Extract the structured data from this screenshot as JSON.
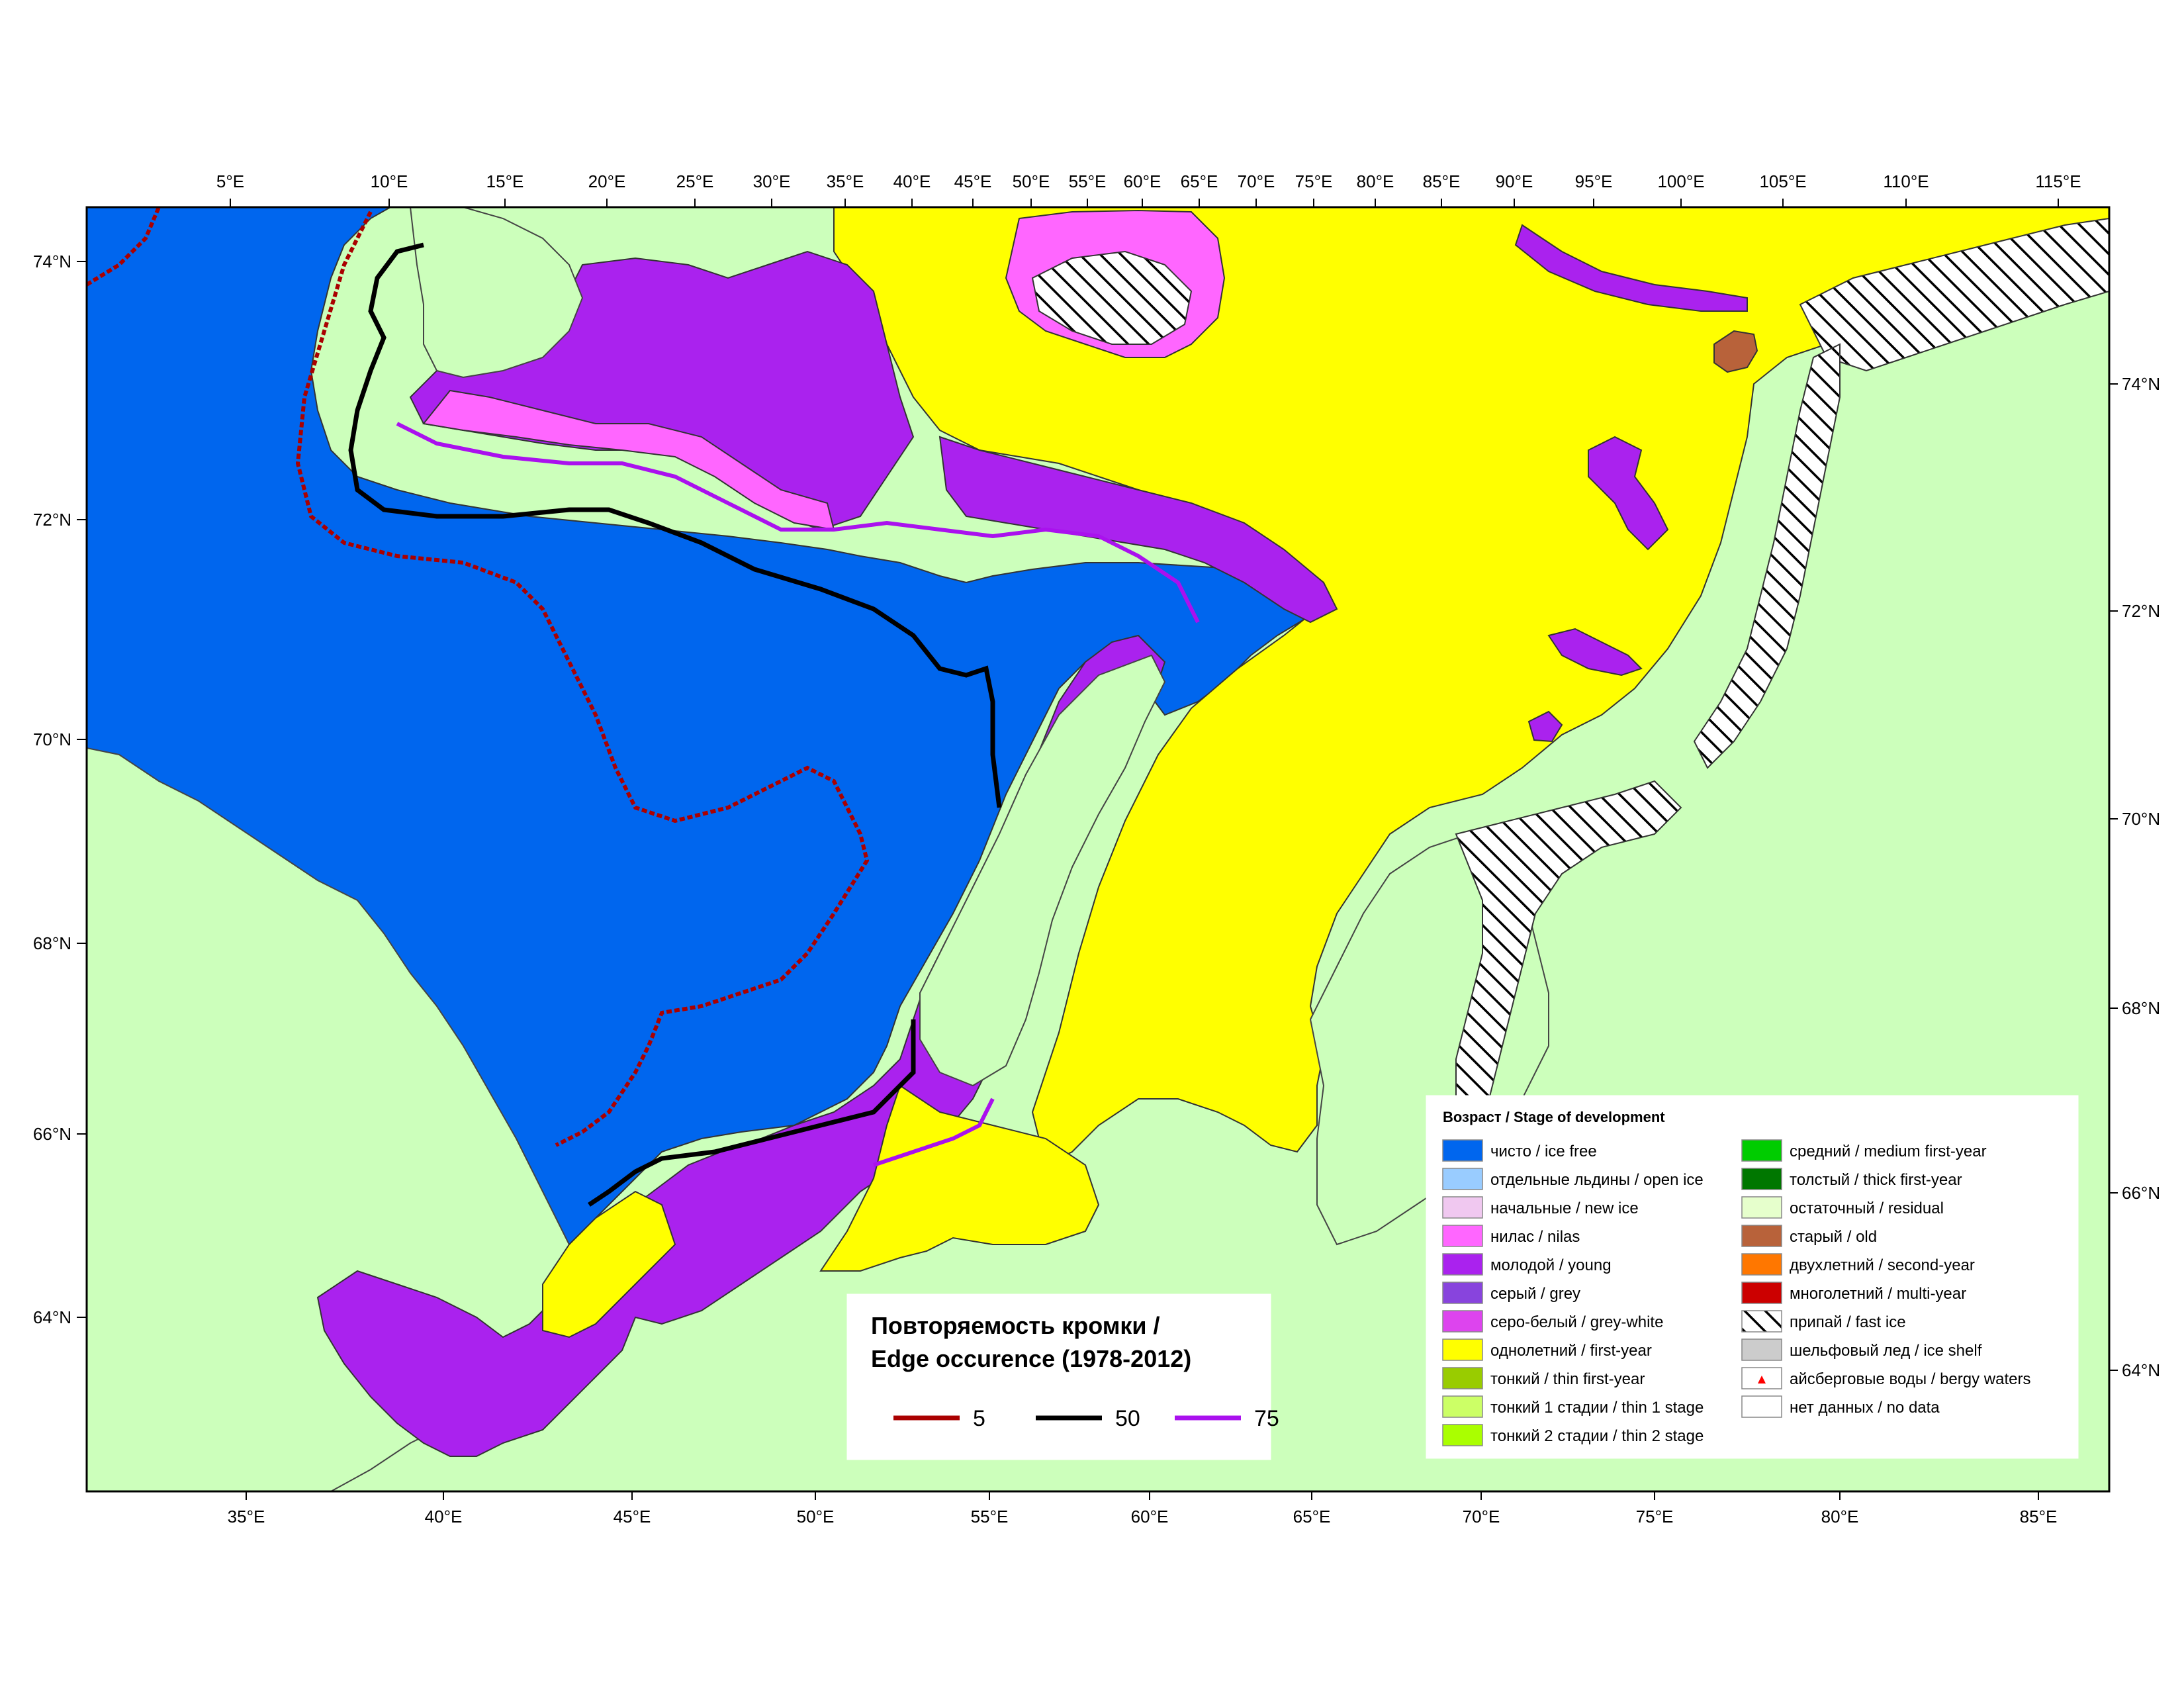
{
  "map": {
    "top_lon_labels": [
      "5°E",
      "10°E",
      "15°E",
      "20°E",
      "25°E",
      "30°E",
      "35°E",
      "40°E",
      "45°E",
      "50°E",
      "55°E",
      "60°E",
      "65°E",
      "70°E",
      "75°E",
      "80°E",
      "85°E",
      "90°E",
      "95°E",
      "100°E",
      "105°E",
      "110°E",
      "115°E"
    ],
    "bottom_lon_labels": [
      "35°E",
      "40°E",
      "45°E",
      "50°E",
      "55°E",
      "60°E",
      "65°E",
      "70°E",
      "75°E",
      "80°E",
      "85°E"
    ],
    "left_lat_labels": [
      "74°N",
      "72°N",
      "70°N",
      "68°N",
      "66°N",
      "64°N"
    ],
    "right_lat_labels": [
      "74°N",
      "72°N",
      "70°N",
      "68°N",
      "66°N",
      "64°N"
    ]
  },
  "legend": {
    "title": "Возраст / Stage of development",
    "items": [
      {
        "label": "чисто / ice free",
        "color": "#0066ee",
        "pattern": "solid"
      },
      {
        "label": "отдельные льдины / open ice",
        "color": "#99ccff",
        "pattern": "solid"
      },
      {
        "label": "начальные / new ice",
        "color": "#f0c8f0",
        "pattern": "solid"
      },
      {
        "label": "нилас / nilas",
        "color": "#ff66ff",
        "pattern": "solid"
      },
      {
        "label": "молодой / young",
        "color": "#aa22ee",
        "pattern": "solid"
      },
      {
        "label": "серый / grey",
        "color": "#8844dd",
        "pattern": "solid"
      },
      {
        "label": "серо-белый / grey-white",
        "color": "#dd44ee",
        "pattern": "solid"
      },
      {
        "label": "однолетний / first-year",
        "color": "#ffff00",
        "pattern": "solid"
      },
      {
        "label": "тонкий / thin first-year",
        "color": "#99cc00",
        "pattern": "solid"
      },
      {
        "label": "тонкий 1 стадии / thin 1 stage",
        "color": "#ccff66",
        "pattern": "solid"
      },
      {
        "label": "тонкий 2 стадии / thin 2 stage",
        "color": "#aaff00",
        "pattern": "solid"
      },
      {
        "label": "средний / medium first-year",
        "color": "#00cc00",
        "pattern": "solid"
      },
      {
        "label": "толстый / thick first-year",
        "color": "#007700",
        "pattern": "solid"
      },
      {
        "label": "остаточный / residual",
        "color": "#e6ffcc",
        "pattern": "solid"
      },
      {
        "label": "старый / old",
        "color": "#b8623a",
        "pattern": "solid"
      },
      {
        "label": "двухлетний / second-year",
        "color": "#ff7700",
        "pattern": "solid"
      },
      {
        "label": "многолетний / multi-year",
        "color": "#cc0000",
        "pattern": "solid"
      },
      {
        "label": "припай / fast ice",
        "color": "#000000",
        "pattern": "hatch"
      },
      {
        "label": "шельфовый лед / ice shelf",
        "color": "#cccccc",
        "pattern": "solid"
      },
      {
        "label": "айсберговые воды / bergy waters",
        "color": "#ff0000",
        "pattern": "berg"
      },
      {
        "label": "нет данных / no data",
        "color": "#ffffff",
        "pattern": "solid"
      }
    ]
  },
  "edge_box": {
    "title_line1": "Повторяемость кромки /",
    "title_line2": "Edge occurence (1978-2012)",
    "items": [
      {
        "label": "5",
        "color": "#aa0000"
      },
      {
        "label": "50",
        "color": "#000000"
      },
      {
        "label": "75",
        "color": "#aa11ee"
      }
    ]
  },
  "colors": {
    "land": "#ccffbb",
    "ice_free": "#0066ee",
    "first_year": "#ffff00",
    "young": "#aa22ee",
    "nilas": "#ff66ff",
    "old": "#b8623a",
    "edge_5": "#aa0000",
    "edge_50": "#000000",
    "edge_75": "#aa11ee"
  }
}
